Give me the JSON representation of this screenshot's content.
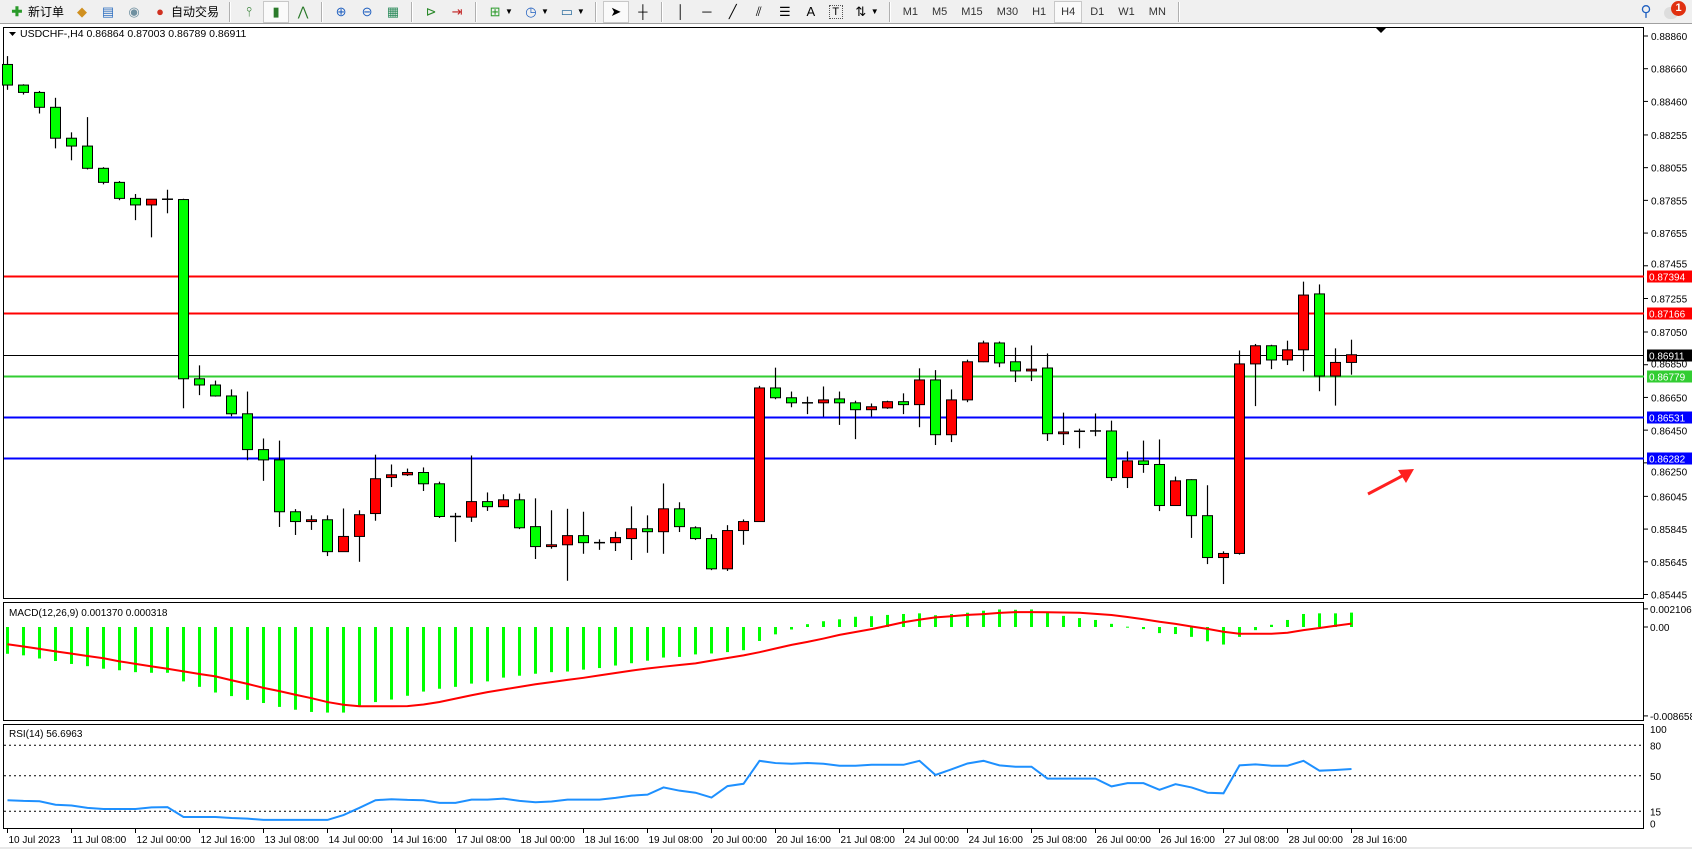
{
  "toolbar": {
    "new_order_label": "新订单",
    "auto_trading_label": "自动交易",
    "timeframes": [
      "M1",
      "M5",
      "M15",
      "M30",
      "H1",
      "H4",
      "D1",
      "W1",
      "MN"
    ],
    "active_timeframe": "H4",
    "notification_count": "1",
    "icons": [
      "new-order-icon",
      "market-watch-icon",
      "data-window-icon",
      "navigator-icon",
      "auto-trading-icon",
      "bar-chart-icon",
      "candlestick-icon",
      "line-chart-icon",
      "zoom-in-icon",
      "zoom-out-icon",
      "tile-windows-icon",
      "chart-shift-icon",
      "auto-scroll-icon",
      "indicators-icon",
      "periods-icon",
      "templates-icon",
      "cursor-icon",
      "crosshair-icon",
      "vertical-line-icon",
      "horizontal-line-icon",
      "trendline-icon",
      "equidistant-channel-icon",
      "fibonacci-icon",
      "text-icon",
      "text-label-icon",
      "arrows-icon",
      "search-icon",
      "notification-icon"
    ]
  },
  "chart": {
    "header": "USDCHF-,H4  0.86864 0.87003 0.86789 0.86911",
    "price_axis_labels": [
      "0.88860",
      "0.88660",
      "0.88460",
      "0.88255",
      "0.88055",
      "0.87855",
      "0.87655",
      "0.87455",
      "0.87255",
      "0.87050",
      "0.86850",
      "0.86650",
      "0.86450",
      "0.86250",
      "0.86045",
      "0.85845",
      "0.85645",
      "0.85445"
    ],
    "horizontal_lines": [
      {
        "price": "0.87394",
        "color": "#ff0000"
      },
      {
        "price": "0.87166",
        "color": "#ff0000"
      },
      {
        "price": "0.86911",
        "color": "#000000"
      },
      {
        "price": "0.86779",
        "color": "#32cd32"
      },
      {
        "price": "0.86531",
        "color": "#0000ff"
      },
      {
        "price": "0.86282",
        "color": "#0000ff"
      }
    ],
    "bull_color": "#ff0000",
    "bear_color": "#00ff00",
    "annotation_arrow_color": "#ff2020"
  },
  "macd": {
    "label": "MACD(12,26,9) 0.001370 0.000318",
    "axis_labels": [
      "0.002106",
      "0.00",
      "-0.008658"
    ]
  },
  "rsi": {
    "label": "RSI(14) 56.6963",
    "axis_labels": [
      "100",
      "80",
      "50",
      "15",
      "0"
    ]
  },
  "time_labels": [
    "10 Jul 2023",
    "11 Jul 08:00",
    "12 Jul 00:00",
    "12 Jul 16:00",
    "13 Jul 08:00",
    "14 Jul 00:00",
    "14 Jul 16:00",
    "17 Jul 08:00",
    "18 Jul 00:00",
    "18 Jul 16:00",
    "19 Jul 08:00",
    "20 Jul 00:00",
    "20 Jul 16:00",
    "21 Jul 08:00",
    "24 Jul 00:00",
    "24 Jul 16:00",
    "25 Jul 08:00",
    "26 Jul 00:00",
    "26 Jul 16:00",
    "27 Jul 08:00",
    "28 Jul 00:00",
    "28 Jul 16:00"
  ],
  "chart_data": {
    "type": "candlestick",
    "symbol": "USDCHF-",
    "timeframe": "H4",
    "ylim": [
      0.85445,
      0.8886
    ],
    "ohlc": [
      [
        0.88686,
        0.88737,
        0.88531,
        0.8856
      ],
      [
        0.8856,
        0.88565,
        0.88502,
        0.88515
      ],
      [
        0.88515,
        0.88524,
        0.88386,
        0.88424
      ],
      [
        0.88424,
        0.88482,
        0.88173,
        0.88235
      ],
      [
        0.88235,
        0.88271,
        0.881,
        0.88187
      ],
      [
        0.88187,
        0.88364,
        0.88044,
        0.88051
      ],
      [
        0.88051,
        0.88058,
        0.87953,
        0.87965
      ],
      [
        0.87965,
        0.87973,
        0.87856,
        0.87867
      ],
      [
        0.87867,
        0.87894,
        0.87734,
        0.87827
      ],
      [
        0.87827,
        0.87862,
        0.87629,
        0.87862
      ],
      [
        0.87862,
        0.8792,
        0.87776,
        0.8786
      ],
      [
        0.8786,
        0.87865,
        0.86584,
        0.86764
      ],
      [
        0.86764,
        0.86846,
        0.86664,
        0.86726
      ],
      [
        0.86726,
        0.86753,
        0.86655,
        0.86659
      ],
      [
        0.86659,
        0.86699,
        0.86535,
        0.8655
      ],
      [
        0.8655,
        0.86686,
        0.86266,
        0.86331
      ],
      [
        0.86331,
        0.86399,
        0.8614,
        0.86268
      ],
      [
        0.86268,
        0.86386,
        0.85858,
        0.85951
      ],
      [
        0.85951,
        0.85967,
        0.85809,
        0.85891
      ],
      [
        0.85891,
        0.85929,
        0.8584,
        0.85902
      ],
      [
        0.85902,
        0.85929,
        0.8568,
        0.85707
      ],
      [
        0.85707,
        0.85971,
        0.85705,
        0.858
      ],
      [
        0.858,
        0.8596,
        0.85645,
        0.85933
      ],
      [
        0.8594,
        0.863,
        0.85896,
        0.86153
      ],
      [
        0.8616,
        0.8624,
        0.86102,
        0.86177
      ],
      [
        0.86177,
        0.86215,
        0.8617,
        0.86191
      ],
      [
        0.86191,
        0.86222,
        0.86078,
        0.86122
      ],
      [
        0.86122,
        0.86135,
        0.85913,
        0.85922
      ],
      [
        0.85922,
        0.85944,
        0.85767,
        0.85918
      ],
      [
        0.85918,
        0.86295,
        0.85889,
        0.86013
      ],
      [
        0.86013,
        0.86069,
        0.85956,
        0.85982
      ],
      [
        0.85982,
        0.86058,
        0.8598,
        0.86024
      ],
      [
        0.86024,
        0.86062,
        0.85845,
        0.85853
      ],
      [
        0.8586,
        0.86033,
        0.85662,
        0.85738
      ],
      [
        0.85738,
        0.8596,
        0.85725,
        0.85749
      ],
      [
        0.85749,
        0.85969,
        0.85529,
        0.85805
      ],
      [
        0.85805,
        0.85951,
        0.85694,
        0.85762
      ],
      [
        0.85762,
        0.85782,
        0.85718,
        0.85762
      ],
      [
        0.85762,
        0.85829,
        0.85711,
        0.85793
      ],
      [
        0.85787,
        0.85984,
        0.85656,
        0.85847
      ],
      [
        0.85847,
        0.85929,
        0.857,
        0.85829
      ],
      [
        0.85829,
        0.86124,
        0.85694,
        0.85969
      ],
      [
        0.85969,
        0.86009,
        0.85827,
        0.8586
      ],
      [
        0.85853,
        0.85862,
        0.85778,
        0.85787
      ],
      [
        0.85787,
        0.85813,
        0.85594,
        0.85602
      ],
      [
        0.85602,
        0.85869,
        0.85589,
        0.85836
      ],
      [
        0.85836,
        0.85904,
        0.85749,
        0.85891
      ],
      [
        0.85891,
        0.86721,
        0.85889,
        0.86708
      ],
      [
        0.86708,
        0.86832,
        0.86639,
        0.86648
      ],
      [
        0.86648,
        0.86686,
        0.8659,
        0.86617
      ],
      [
        0.86617,
        0.86655,
        0.86548,
        0.86617
      ],
      [
        0.86617,
        0.86717,
        0.86533,
        0.86635
      ],
      [
        0.86641,
        0.86686,
        0.86482,
        0.86617
      ],
      [
        0.86617,
        0.8663,
        0.86395,
        0.86575
      ],
      [
        0.86575,
        0.86613,
        0.86533,
        0.86593
      ],
      [
        0.86586,
        0.8663,
        0.8658,
        0.86624
      ],
      [
        0.86624,
        0.86675,
        0.86548,
        0.86606
      ],
      [
        0.86606,
        0.86828,
        0.86468,
        0.86757
      ],
      [
        0.86757,
        0.86817,
        0.86359,
        0.86422
      ],
      [
        0.86422,
        0.86699,
        0.86377,
        0.86635
      ],
      [
        0.86635,
        0.86881,
        0.86621,
        0.86868
      ],
      [
        0.86868,
        0.86997,
        0.86866,
        0.86983
      ],
      [
        0.86983,
        0.86992,
        0.86835,
        0.86861
      ],
      [
        0.86868,
        0.86954,
        0.86744,
        0.86812
      ],
      [
        0.86812,
        0.86968,
        0.8675,
        0.86823
      ],
      [
        0.8683,
        0.86919,
        0.86384,
        0.86428
      ],
      [
        0.86428,
        0.86557,
        0.86359,
        0.86439
      ],
      [
        0.86439,
        0.86459,
        0.86339,
        0.86443
      ],
      [
        0.86443,
        0.86552,
        0.86413,
        0.86445
      ],
      [
        0.86445,
        0.86508,
        0.8614,
        0.8616
      ],
      [
        0.8616,
        0.8632,
        0.86096,
        0.86262
      ],
      [
        0.86262,
        0.86386,
        0.86189,
        0.8624
      ],
      [
        0.8624,
        0.86393,
        0.85955,
        0.85989
      ],
      [
        0.85989,
        0.86166,
        0.85987,
        0.8614
      ],
      [
        0.86147,
        0.8615,
        0.85791,
        0.85927
      ],
      [
        0.85927,
        0.86113,
        0.85631,
        0.85671
      ],
      [
        0.85671,
        0.85709,
        0.85509,
        0.85696
      ],
      [
        0.85696,
        0.86937,
        0.85689,
        0.86855
      ],
      [
        0.86855,
        0.86977,
        0.86597,
        0.86966
      ],
      [
        0.86966,
        0.86972,
        0.86823,
        0.86879
      ],
      [
        0.86879,
        0.86997,
        0.86848,
        0.86941
      ],
      [
        0.86941,
        0.87358,
        0.8681,
        0.87276
      ],
      [
        0.87283,
        0.87341,
        0.86688,
        0.86781
      ],
      [
        0.86781,
        0.8695,
        0.866,
        0.86864
      ],
      [
        0.86864,
        0.87003,
        0.86789,
        0.86911
      ]
    ],
    "macd_ylim": [
      -0.008658,
      0.002106
    ],
    "macd_histogram": [
      -0.00255,
      -0.0027,
      -0.003,
      -0.00324,
      -0.00352,
      -0.00373,
      -0.00397,
      -0.00412,
      -0.0043,
      -0.00436,
      -0.00436,
      -0.00518,
      -0.0057,
      -0.00624,
      -0.00658,
      -0.00694,
      -0.00724,
      -0.00761,
      -0.00788,
      -0.00809,
      -0.00815,
      -0.00815,
      -0.00761,
      -0.00715,
      -0.00691,
      -0.00655,
      -0.00615,
      -0.00588,
      -0.0057,
      -0.00539,
      -0.00518,
      -0.00482,
      -0.00464,
      -0.00445,
      -0.0043,
      -0.00424,
      -0.00406,
      -0.00391,
      -0.00367,
      -0.00345,
      -0.00321,
      -0.00291,
      -0.00285,
      -0.00261,
      -0.00252,
      -0.00239,
      -0.00221,
      -0.00133,
      -0.0007,
      -0.00024,
      0.00027,
      0.00055,
      0.00073,
      0.00097,
      0.00103,
      0.00115,
      0.00124,
      0.0013,
      0.00112,
      0.00124,
      0.00136,
      0.00155,
      0.00167,
      0.00164,
      0.00167,
      0.00136,
      0.00106,
      0.00085,
      0.00067,
      0.0003,
      3e-05,
      -0.0002,
      -0.00058,
      -0.00067,
      -0.00094,
      -0.00136,
      -0.00167,
      -0.00094,
      -0.0003,
      0.00021,
      0.00067,
      0.00124,
      0.0013,
      0.0013,
      0.00137
    ],
    "macd_signal": [
      -0.00164,
      -0.00186,
      -0.00208,
      -0.00232,
      -0.00254,
      -0.00276,
      -0.00298,
      -0.00327,
      -0.00351,
      -0.00375,
      -0.00398,
      -0.00423,
      -0.00448,
      -0.0047,
      -0.00507,
      -0.00542,
      -0.0058,
      -0.00611,
      -0.00645,
      -0.00678,
      -0.00715,
      -0.0074,
      -0.00755,
      -0.00755,
      -0.00755,
      -0.00753,
      -0.00738,
      -0.00714,
      -0.00682,
      -0.0065,
      -0.0062,
      -0.00595,
      -0.0057,
      -0.00545,
      -0.00525,
      -0.00504,
      -0.00484,
      -0.00461,
      -0.00438,
      -0.00415,
      -0.00395,
      -0.00378,
      -0.00362,
      -0.00346,
      -0.0032,
      -0.00295,
      -0.0027,
      -0.0024,
      -0.00205,
      -0.0017,
      -0.00142,
      -0.0011,
      -0.00075,
      -0.00048,
      -0.0002,
      0.00012,
      0.00045,
      0.0007,
      0.00092,
      0.00102,
      0.00115,
      0.00123,
      0.00134,
      0.00142,
      0.00142,
      0.0014,
      0.00138,
      0.00136,
      0.00125,
      0.00114,
      0.00095,
      0.00074,
      0.0005,
      0.0003,
      5e-05,
      -0.00018,
      -0.00045,
      -0.00064,
      -0.00064,
      -0.00064,
      -0.00055,
      -0.0003,
      -0.0001,
      0.00012,
      0.00032
    ],
    "rsi_ylim": [
      0,
      100
    ],
    "rsi_levels": [
      80,
      50,
      15
    ],
    "rsi": [
      25.9,
      25.2,
      24.9,
      21.4,
      20.7,
      18.4,
      17.2,
      17.2,
      17.2,
      18.8,
      19.1,
      9.4,
      9.4,
      9.4,
      8.4,
      7.8,
      6.5,
      6.5,
      6.5,
      6.5,
      6.5,
      11.3,
      18.4,
      25.9,
      26.9,
      26.2,
      25.9,
      23.3,
      23.3,
      26.5,
      26.5,
      27.5,
      25.2,
      23.9,
      24.6,
      26.5,
      26.5,
      26.5,
      28.2,
      30.4,
      31.4,
      38.5,
      35.3,
      33.3,
      28.5,
      39.8,
      42.1,
      64.7,
      62.5,
      61.8,
      62.5,
      61.8,
      59.9,
      59.9,
      60.8,
      60.8,
      60.8,
      64.7,
      50.8,
      56.3,
      62.1,
      64.7,
      60.2,
      58.9,
      58.9,
      47.2,
      47.2,
      47.2,
      47.2,
      39.5,
      42.7,
      42.7,
      36.2,
      41.7,
      38.5,
      33.3,
      32.7,
      60.2,
      61.2,
      59.9,
      59.9,
      64.7,
      55.0,
      55.7,
      56.7
    ],
    "macd_histogram_color": "#00ff00",
    "macd_signal_color": "#ff0000",
    "rsi_color": "#1e90ff",
    "grid": false
  }
}
